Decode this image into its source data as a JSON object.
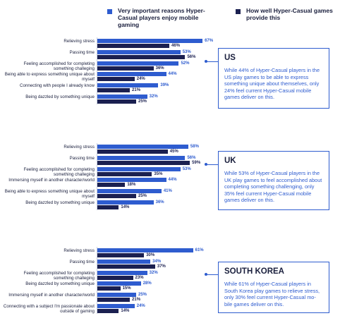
{
  "legend": {
    "series_a_label": "Very important reasons Hyper-Casual players enjoy mobile gaming",
    "series_b_label": "How well Hyper-Casual games provide this"
  },
  "colors": {
    "series_a": "#2e5ccf",
    "series_b": "#1b2050"
  },
  "callouts": [
    {
      "title": "US",
      "text": "While 44% of Hyper-Casual players in the US play games to be able to express something unique about themselves, only 24% feel current Hyper-Casual mobile games deliver on this."
    },
    {
      "title": "UK",
      "text": "While 53% of Hyper-Casual players in the UK play games to feel accomplished about completing something challenging, only 35% feel current Hyper-Casual mobile games deliver on this."
    },
    {
      "title": "SOUTH KOREA",
      "text": "While 61% of Hyper-Casual players in South Korea play games to relieve stress, only 30% feel current Hyper-Casual mo-bile games deliver on this."
    }
  ],
  "chart_data": [
    {
      "type": "bar",
      "orientation": "horizontal",
      "region": "US",
      "categories": [
        "Relieving stress",
        "Passing time",
        "Feeling accomplished for completing something challeging",
        "Being able to express something unique about myself",
        "Connecting with people I already know",
        "Being dazzled by something unique"
      ],
      "series": [
        {
          "name": "Very important reasons Hyper-Casual players enjoy mobile gaming",
          "values": [
            67,
            53,
            52,
            44,
            39,
            32
          ],
          "labels": [
            "67%",
            "53%",
            "52%",
            "44%",
            "39%",
            "32%"
          ]
        },
        {
          "name": "How well Hyper-Casual games provide this",
          "values": [
            46,
            56,
            36,
            24,
            21,
            25
          ],
          "labels": [
            "46%",
            "56%",
            "36%",
            "24%",
            "21%",
            "25%"
          ]
        }
      ]
    },
    {
      "type": "bar",
      "orientation": "horizontal",
      "region": "UK",
      "categories": [
        "Relieving stress",
        "Passing time",
        "Feeling accomplished for completing something challeging",
        "Immersing myself in another character/world",
        "Being able to express something unique about myself",
        "Being dazzled by something unique"
      ],
      "series": [
        {
          "name": "Very important reasons Hyper-Casual players enjoy mobile gaming",
          "values": [
            58,
            56,
            53,
            44,
            41,
            36
          ],
          "labels": [
            "58%",
            "56%",
            "53%",
            "44%",
            "41%",
            "36%"
          ]
        },
        {
          "name": "How well Hyper-Casual games provide this",
          "values": [
            45,
            59,
            35,
            18,
            25,
            14
          ],
          "labels": [
            "45%",
            "59%",
            "35%",
            "18%",
            "25%",
            "14%"
          ]
        }
      ]
    },
    {
      "type": "bar",
      "orientation": "horizontal",
      "region": "SOUTH KOREA",
      "categories": [
        "Relieving stress",
        "Passing time",
        "Feeling accomplished for completing something challeging",
        "Being dazzled by something unique",
        "Immersing myself in another character/world",
        "Connecting with a subject I'm passionate about outside of gaming"
      ],
      "series": [
        {
          "name": "Very important reasons Hyper-Casual players enjoy mobile gaming",
          "values": [
            61,
            34,
            32,
            28,
            25,
            24
          ],
          "labels": [
            "61%",
            "34%",
            "32%",
            "28%",
            "25%",
            "24%"
          ]
        },
        {
          "name": "How well Hyper-Casual games provide this",
          "values": [
            30,
            37,
            23,
            15,
            21,
            14
          ],
          "labels": [
            "30%",
            "37%",
            "23%",
            "15%",
            "21%",
            "14%"
          ]
        }
      ]
    }
  ]
}
